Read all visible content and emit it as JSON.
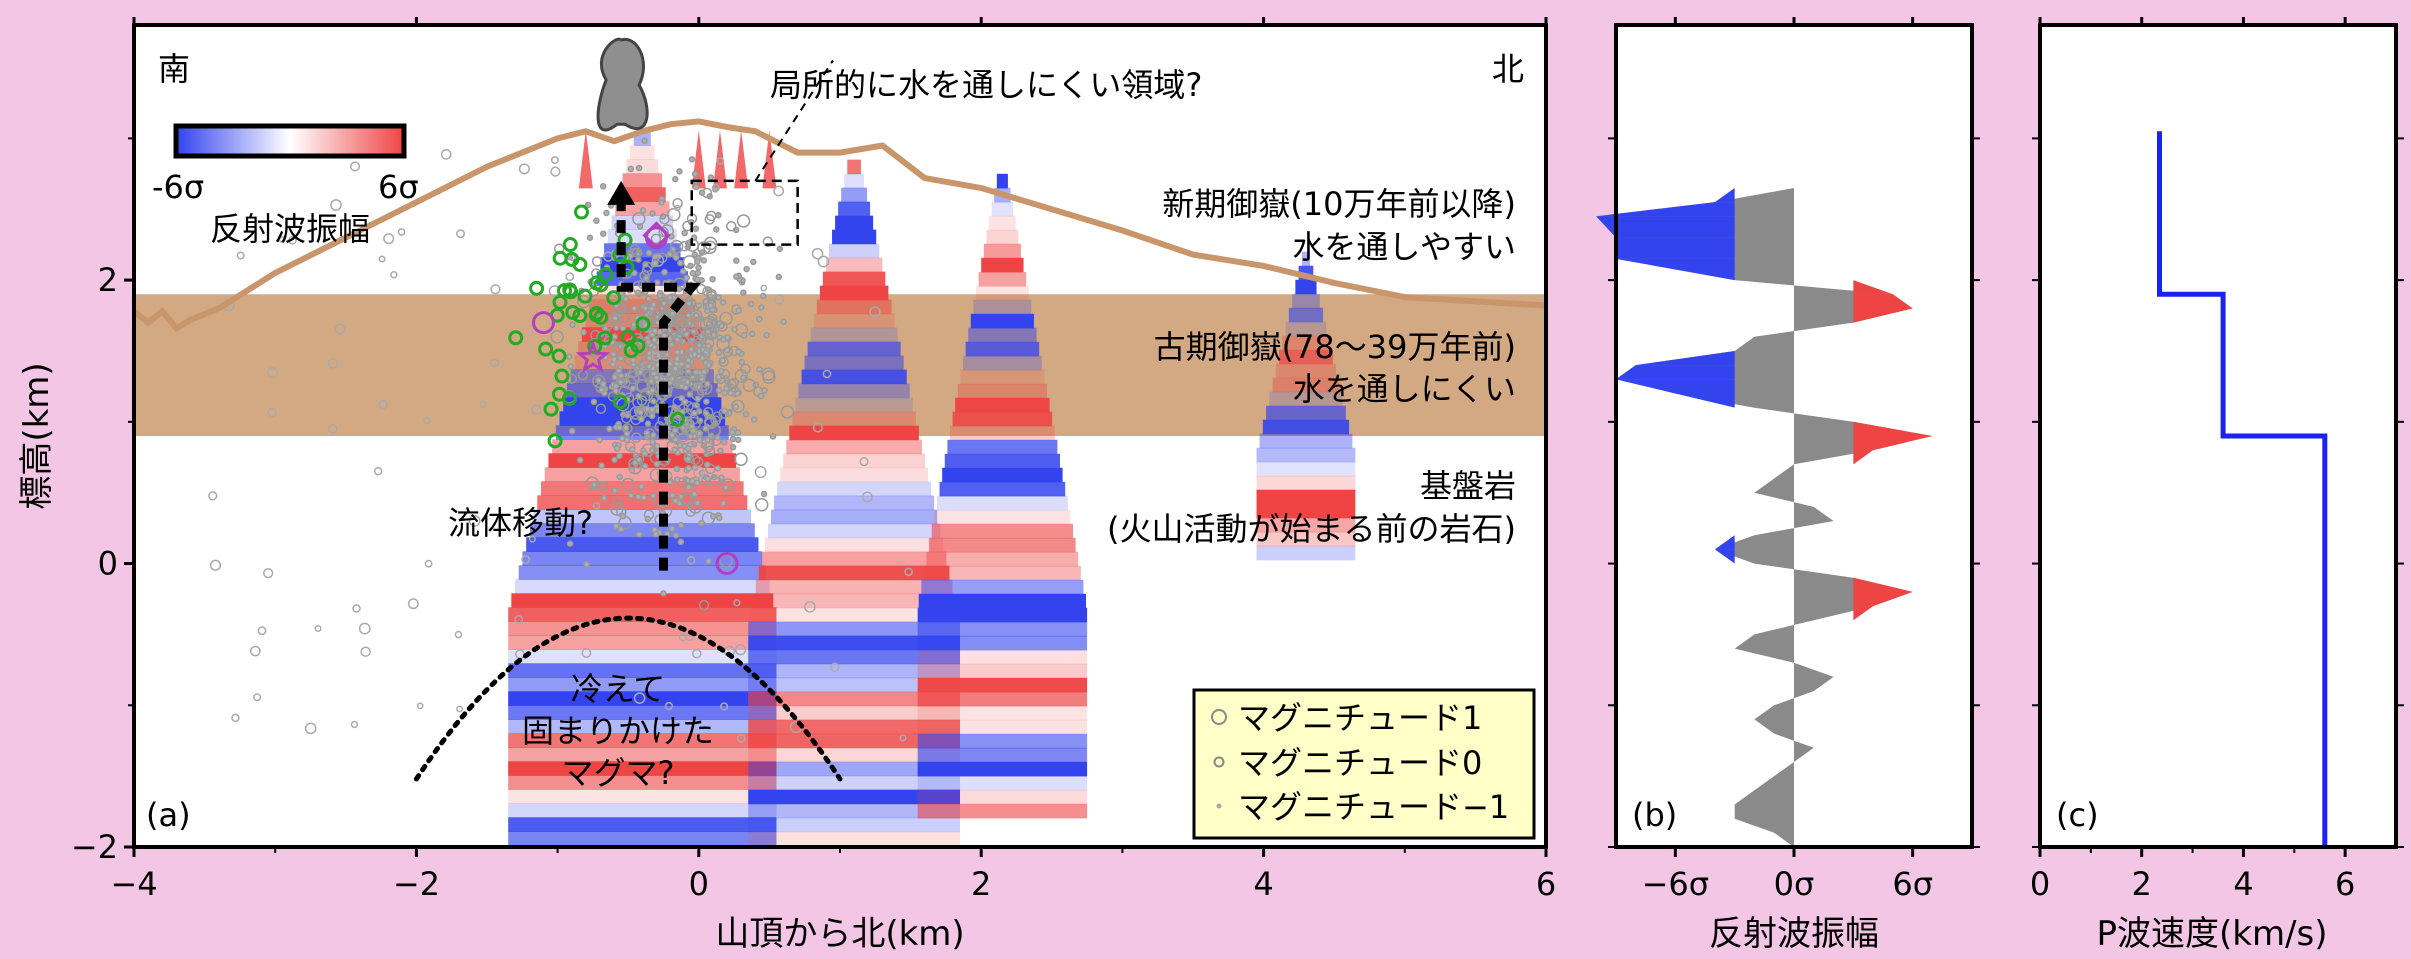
{
  "colors": {
    "background": "#f4c6e6",
    "plot_bg": "#ffffff",
    "tan": "#d2a982",
    "topo_line": "#c9956a",
    "reflect_pos": "#ee4444",
    "reflect_neg": "#3344ee",
    "trace_gray": "#8a8a8a",
    "vel_line": "#1a22ee",
    "legend_bg": "#ffffc8",
    "eq_gray": "#a0a0a0",
    "eq_green": "#22aa22",
    "eq_magenta": "#b040c0"
  },
  "panel_a": {
    "label": "(a)",
    "south": "南",
    "north": "北",
    "xlabel": "山頂から北(km)",
    "ylabel": "標高(km)",
    "xticks": [
      "−4",
      "−2",
      "0",
      "2",
      "4",
      "6"
    ],
    "yticks": [
      "−2",
      "0",
      "2"
    ],
    "colorbar_min": "-6σ",
    "colorbar_max": "6σ",
    "colorbar_title": "反射波振幅",
    "ann_low_perm": "局所的に水を通しにくい領域?",
    "ann_new_1": "新期御嶽(10万年前以降)",
    "ann_new_2": "水を通しやすい",
    "ann_old_1": "古期御嶽(78〜39万年前)",
    "ann_old_2": "水を通しにくい",
    "ann_base_1": "基盤岩",
    "ann_base_2": "(火山活動が始まる前の岩石)",
    "ann_fluid": "流体移動?",
    "ann_magma_1": "冷えて",
    "ann_magma_2": "固まりかけた",
    "ann_magma_3": "マグマ?",
    "legend": [
      "マグニチュード1",
      "マグニチュード0",
      "マグニチュード−1"
    ]
  },
  "panel_b": {
    "label": "(b)",
    "xlabel": "反射波振幅",
    "xticks": [
      "−6σ",
      "0σ",
      "6σ"
    ]
  },
  "panel_c": {
    "label": "(c)",
    "xlabel": "P波速度(km/s)",
    "xticks": [
      "0",
      "2",
      "4",
      "6"
    ]
  },
  "chart_data": [
    {
      "type": "scatter",
      "panel": "a",
      "xlim": [
        -4,
        6
      ],
      "ylim": [
        -2,
        3.8
      ],
      "xlabel": "山頂から北(km)",
      "ylabel": "標高(km)",
      "layers_km": {
        "old_ontake_top": 1.9,
        "old_ontake_bottom": 0.9
      },
      "topography": {
        "x": [
          -4,
          -3.9,
          -3.8,
          -3.7,
          -3.6,
          -3.4,
          -3.0,
          -2.5,
          -2.0,
          -1.5,
          -1.0,
          -0.8,
          -0.6,
          -0.4,
          -0.2,
          0,
          0.2,
          0.4,
          0.7,
          1.0,
          1.3,
          1.6,
          2.0,
          2.5,
          3.0,
          3.5,
          4.0,
          4.5,
          5.0,
          5.5,
          6.0
        ],
        "y": [
          1.78,
          1.7,
          1.78,
          1.66,
          1.72,
          1.8,
          2.05,
          2.3,
          2.55,
          2.8,
          3.0,
          3.05,
          2.98,
          3.05,
          3.1,
          3.12,
          3.08,
          3.05,
          2.9,
          2.9,
          2.95,
          2.72,
          2.65,
          2.5,
          2.35,
          2.18,
          2.1,
          1.98,
          1.88,
          1.85,
          1.82
        ]
      },
      "plume_summit_x": -0.55,
      "fluid_path": {
        "x": [
          -0.05,
          -0.05,
          -0.55,
          -0.55,
          -0.25,
          -0.25
        ],
        "y": [
          1.95,
          1.95,
          1.95,
          2.7,
          1.7,
          -0.05
        ]
      },
      "magma_arc": {
        "x": [
          -2.0,
          -1.5,
          -1.0,
          -0.5,
          0,
          0.5,
          1.0
        ],
        "y": [
          -1.52,
          -0.95,
          -0.6,
          -0.42,
          -0.45,
          -0.8,
          -1.52
        ]
      },
      "dashed_box": {
        "x": [
          -0.05,
          0.7
        ],
        "y": [
          2.25,
          2.7
        ]
      },
      "reflection_profiles": [
        {
          "x": -0.4,
          "top": 3.05,
          "bottom": -1.95,
          "halfwidth": 0.95
        },
        {
          "x": 1.1,
          "top": 2.85,
          "bottom": -1.95,
          "halfwidth": 0.75
        },
        {
          "x": 2.15,
          "top": 2.75,
          "bottom": -1.75,
          "halfwidth": 0.6
        },
        {
          "x": 4.3,
          "top": 2.2,
          "bottom": 0.1,
          "halfwidth": 0.35
        }
      ],
      "earthquakes_focal_stars": [
        {
          "x": -0.75,
          "y": 1.45
        }
      ],
      "earthquakes_large": [
        {
          "x": -1.1,
          "y": 1.7
        },
        {
          "x": -0.3,
          "y": 2.3
        },
        {
          "x": 0.2,
          "y": 0.0
        }
      ]
    },
    {
      "type": "area",
      "panel": "b",
      "xlim": [
        -9,
        9
      ],
      "ylim": [
        -2,
        3.8
      ],
      "xlabel": "反射波振幅",
      "trace": {
        "y": [
          2.65,
          2.55,
          2.45,
          2.3,
          2.15,
          2.0,
          1.9,
          1.8,
          1.7,
          1.6,
          1.5,
          1.4,
          1.3,
          1.2,
          1.1,
          1.0,
          0.9,
          0.8,
          0.7,
          0.6,
          0.5,
          0.4,
          0.3,
          0.2,
          0.1,
          0.0,
          -0.1,
          -0.2,
          -0.3,
          -0.4,
          -0.5,
          -0.6,
          -0.7,
          -0.8,
          -0.9,
          -1.0,
          -1.1,
          -1.2,
          -1.3,
          -1.4,
          -1.5,
          -1.6,
          -1.7,
          -1.8,
          -1.9,
          -2.0
        ],
        "amp": [
          0,
          -4,
          -10,
          -9,
          -9,
          -3,
          5,
          6,
          3,
          -2,
          -3,
          -8,
          -9,
          -6,
          -2,
          3,
          7,
          4,
          0,
          -1,
          -2,
          1,
          2,
          -2,
          -4,
          -2,
          3,
          6,
          4,
          1,
          -2,
          -3,
          0,
          2,
          1,
          -1,
          -2,
          -1,
          1,
          0,
          -1,
          -2,
          -3,
          -3,
          -1,
          0
        ]
      }
    },
    {
      "type": "line",
      "panel": "c",
      "xlim": [
        0,
        7
      ],
      "ylim": [
        -2,
        3.8
      ],
      "xlabel": "P波速度(km/s)",
      "x": [
        2.35,
        2.35,
        3.6,
        3.6,
        5.6,
        5.6
      ],
      "y": [
        3.05,
        1.9,
        1.9,
        0.9,
        0.9,
        -2.0
      ]
    }
  ]
}
